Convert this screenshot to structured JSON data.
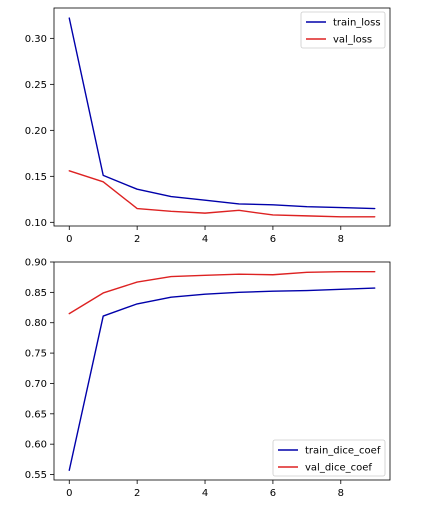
{
  "chart_data": [
    {
      "type": "line",
      "x": [
        0,
        1,
        2,
        3,
        4,
        5,
        6,
        7,
        8,
        9
      ],
      "series": [
        {
          "name": "train_loss",
          "color": "#0000aa",
          "values": [
            0.322,
            0.151,
            0.136,
            0.128,
            0.124,
            0.12,
            0.119,
            0.117,
            0.116,
            0.115
          ]
        },
        {
          "name": "val_loss",
          "color": "#dd2222",
          "values": [
            0.156,
            0.144,
            0.115,
            0.112,
            0.11,
            0.113,
            0.108,
            0.107,
            0.106,
            0.106
          ]
        }
      ],
      "xlim": [
        -0.45,
        9.45
      ],
      "ylim": [
        0.096,
        0.333
      ],
      "xticks": [
        0,
        2,
        4,
        6,
        8
      ],
      "xtick_labels": [
        "0",
        "2",
        "4",
        "6",
        "8"
      ],
      "yticks": [
        0.1,
        0.15,
        0.2,
        0.25,
        0.3
      ],
      "ytick_labels": [
        "0.10",
        "0.15",
        "0.20",
        "0.25",
        "0.30"
      ],
      "legend_loc": "top-right",
      "grid": false
    },
    {
      "type": "line",
      "x": [
        0,
        1,
        2,
        3,
        4,
        5,
        6,
        7,
        8,
        9
      ],
      "series": [
        {
          "name": "train_dice_coef",
          "color": "#0000aa",
          "values": [
            0.557,
            0.811,
            0.831,
            0.842,
            0.847,
            0.85,
            0.852,
            0.853,
            0.855,
            0.857
          ]
        },
        {
          "name": "val_dice_coef",
          "color": "#dd2222",
          "values": [
            0.815,
            0.849,
            0.867,
            0.876,
            0.878,
            0.88,
            0.879,
            0.883,
            0.884,
            0.884
          ]
        }
      ],
      "xlim": [
        -0.45,
        9.45
      ],
      "ylim": [
        0.541,
        0.9
      ],
      "xticks": [
        0,
        2,
        4,
        6,
        8
      ],
      "xtick_labels": [
        "0",
        "2",
        "4",
        "6",
        "8"
      ],
      "yticks": [
        0.55,
        0.6,
        0.65,
        0.7,
        0.75,
        0.8,
        0.85,
        0.9
      ],
      "ytick_labels": [
        "0.55",
        "0.60",
        "0.65",
        "0.70",
        "0.75",
        "0.80",
        "0.85",
        "0.90"
      ],
      "legend_loc": "bottom-right",
      "grid": false
    }
  ]
}
